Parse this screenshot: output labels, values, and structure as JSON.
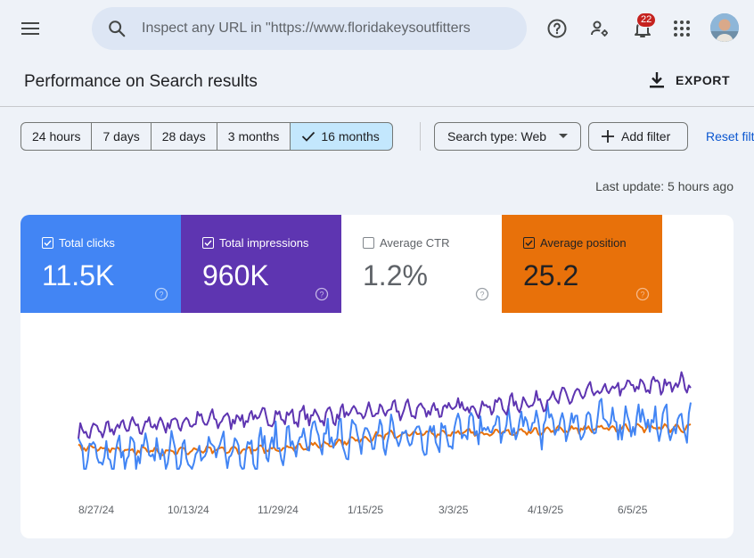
{
  "search": {
    "placeholder": "Inspect any URL in \"https://www.floridakeysoutfitters"
  },
  "notifications": {
    "count": "22"
  },
  "header": {
    "title": "Performance on Search results",
    "export_label": "EXPORT"
  },
  "date_ranges": [
    {
      "label": "24 hours",
      "selected": false
    },
    {
      "label": "7 days",
      "selected": false
    },
    {
      "label": "28 days",
      "selected": false
    },
    {
      "label": "3 months",
      "selected": false
    },
    {
      "label": "16 months",
      "selected": true
    }
  ],
  "filters": {
    "search_type": "Search type: Web",
    "add_filter": "Add filter",
    "reset": "Reset filters"
  },
  "last_update": "Last update: 5 hours ago",
  "metrics": [
    {
      "label": "Total clicks",
      "value": "11.5K",
      "checked": true,
      "color": "#4285f4"
    },
    {
      "label": "Total impressions",
      "value": "960K",
      "checked": true,
      "color": "#5e35b1"
    },
    {
      "label": "Average CTR",
      "value": "1.2%",
      "checked": false,
      "color": "#ffffff"
    },
    {
      "label": "Average position",
      "value": "25.2",
      "checked": true,
      "color": "#e8710a"
    }
  ],
  "chart_data": {
    "type": "line",
    "x_ticks": [
      "8/27/24",
      "10/13/24",
      "11/29/24",
      "1/15/25",
      "3/3/25",
      "4/19/25",
      "6/5/25"
    ],
    "series": [
      {
        "name": "Total impressions",
        "color": "#5e35b1",
        "trend": [
          0.3,
          0.36,
          0.4,
          0.43,
          0.44,
          0.48,
          0.5,
          0.53,
          0.6,
          0.68,
          0.72
        ]
      },
      {
        "name": "Total clicks",
        "color": "#4285f4",
        "trend": [
          0.1,
          0.12,
          0.13,
          0.18,
          0.24,
          0.27,
          0.3,
          0.34,
          0.38,
          0.4,
          0.36
        ]
      },
      {
        "name": "Average position",
        "color": "#e8710a",
        "trend": [
          0.18,
          0.15,
          0.15,
          0.16,
          0.2,
          0.28,
          0.3,
          0.3,
          0.33,
          0.34,
          0.34
        ]
      }
    ],
    "grid": false
  }
}
